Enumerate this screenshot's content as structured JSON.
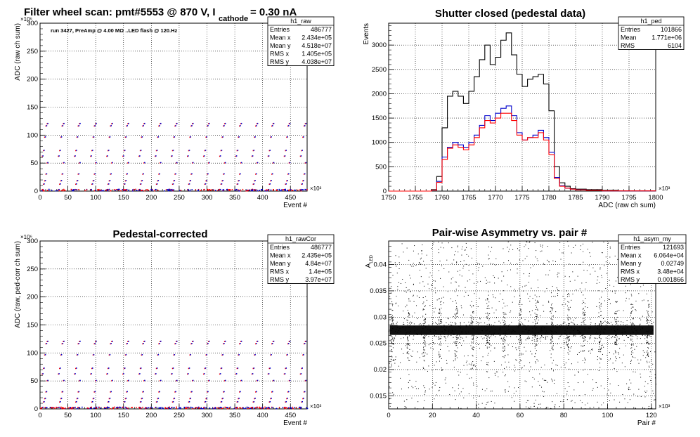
{
  "panels": [
    {
      "title": "Filter wheel scan: pmt#5553 @   870 V, I",
      "title_sub": "cathode",
      "title_tail": " = 0.30 nA",
      "note": "run 3427, PreAmp @ 4.00 MΩ ..LED flash @  120.Hz",
      "stats": {
        "name": "h1_raw",
        "rows": [
          [
            "Entries",
            "486777"
          ],
          [
            "Mean x",
            "2.434e+05"
          ],
          [
            "Mean y",
            "4.518e+07"
          ],
          [
            "RMS x",
            "1.405e+05"
          ],
          [
            "RMS y",
            "4.038e+07"
          ]
        ]
      }
    },
    {
      "title": "Shutter closed (pedestal data)",
      "stats": {
        "name": "h1_ped",
        "rows": [
          [
            "Entries",
            "101866"
          ],
          [
            "Mean",
            "1.771e+06"
          ],
          [
            "RMS",
            "6104"
          ]
        ]
      }
    },
    {
      "title": "Pedestal-corrected",
      "stats": {
        "name": "h1_rawCor",
        "rows": [
          [
            "Entries",
            "486777"
          ],
          [
            "Mean x",
            "2.435e+05"
          ],
          [
            "Mean y",
            "4.84e+07"
          ],
          [
            "RMS x",
            "1.4e+05"
          ],
          [
            "RMS y",
            "3.97e+07"
          ]
        ]
      }
    },
    {
      "title": "Pair-wise Asymmetry vs. pair #",
      "stats": {
        "name": "h1_asym_my",
        "rows": [
          [
            "Entries",
            "121693"
          ],
          [
            "Mean x",
            "6.064e+04"
          ],
          [
            "Mean y",
            "0.02749"
          ],
          [
            "RMS x",
            "3.48e+04"
          ],
          [
            "RMS y",
            "0.001866"
          ]
        ]
      }
    }
  ],
  "chart_data": [
    {
      "type": "scatter",
      "title": "Filter wheel scan: pmt#5553 @   870 V, I cathode = 0.30 nA",
      "xlabel": "Event #",
      "ylabel": "ADC (raw ch sum)",
      "x_multiplier": "×10³",
      "y_multiplier": "×10⁶",
      "xlim": [
        0,
        480
      ],
      "ylim": [
        0,
        300
      ],
      "x_ticks": [
        0,
        50,
        100,
        150,
        200,
        250,
        300,
        350,
        400,
        450
      ],
      "y_ticks": [
        0,
        50,
        100,
        150,
        200,
        250,
        300
      ],
      "cycle_period": 29,
      "cycle_offset": 3,
      "levels": [
        2,
        12,
        18,
        30,
        50,
        62,
        72,
        96,
        116,
        120
      ],
      "colors": {
        "series_a": "#ff0000",
        "series_b": "#0000cc"
      },
      "grid": true
    },
    {
      "type": "line",
      "title": "Shutter closed (pedestal data)",
      "xlabel": "ADC (raw ch sum)",
      "ylabel": "Events",
      "x_multiplier": "×10³",
      "xlim": [
        1750,
        1800
      ],
      "ylim": [
        0,
        3450
      ],
      "x_ticks": [
        1750,
        1755,
        1760,
        1765,
        1770,
        1775,
        1780,
        1785,
        1790,
        1795,
        1800
      ],
      "y_ticks": [
        0,
        500,
        1000,
        1500,
        2000,
        2500,
        3000
      ],
      "series": [
        {
          "color": "#000000",
          "x": [
            1750,
            1757,
            1758,
            1759,
            1760,
            1761,
            1762,
            1763,
            1764,
            1765,
            1766,
            1767,
            1768,
            1769,
            1770,
            1771,
            1772,
            1773,
            1774,
            1775,
            1776,
            1777,
            1778,
            1779,
            1780,
            1781,
            1782,
            1783,
            1784,
            1785,
            1787,
            1790,
            1793,
            1800
          ],
          "y": [
            0,
            0,
            30,
            300,
            1300,
            1950,
            2050,
            1950,
            1800,
            2050,
            2350,
            2700,
            3000,
            2600,
            2750,
            3100,
            3250,
            2800,
            2400,
            2150,
            2300,
            2350,
            2400,
            2200,
            1650,
            500,
            170,
            100,
            50,
            40,
            30,
            15,
            5,
            0
          ]
        },
        {
          "color": "#0000cc",
          "x": [
            1750,
            1757,
            1758,
            1759,
            1760,
            1761,
            1762,
            1763,
            1764,
            1765,
            1766,
            1767,
            1768,
            1769,
            1770,
            1771,
            1772,
            1773,
            1774,
            1775,
            1776,
            1777,
            1778,
            1779,
            1780,
            1781,
            1782,
            1783,
            1784,
            1785,
            1787,
            1790,
            1800
          ],
          "y": [
            0,
            0,
            20,
            200,
            700,
            900,
            1000,
            950,
            900,
            1000,
            1150,
            1350,
            1550,
            1450,
            1600,
            1700,
            1750,
            1550,
            1200,
            1050,
            1100,
            1150,
            1250,
            1100,
            800,
            280,
            110,
            60,
            40,
            25,
            15,
            5,
            0
          ]
        },
        {
          "color": "#ff0000",
          "x": [
            1750,
            1757,
            1758,
            1759,
            1760,
            1761,
            1762,
            1763,
            1764,
            1765,
            1766,
            1767,
            1768,
            1769,
            1770,
            1771,
            1772,
            1773,
            1774,
            1775,
            1776,
            1777,
            1778,
            1779,
            1780,
            1781,
            1782,
            1783,
            1784,
            1785,
            1787,
            1790,
            1800
          ],
          "y": [
            0,
            0,
            20,
            180,
            650,
            880,
            950,
            900,
            850,
            950,
            1100,
            1300,
            1450,
            1400,
            1500,
            1600,
            1600,
            1450,
            1150,
            1050,
            1100,
            1100,
            1200,
            1050,
            750,
            260,
            100,
            60,
            40,
            25,
            15,
            5,
            0
          ]
        }
      ],
      "grid": true
    },
    {
      "type": "scatter",
      "title": "Pedestal-corrected",
      "xlabel": "Event #",
      "ylabel": "ADC (raw, ped-corr ch sum)",
      "x_multiplier": "×10³",
      "y_multiplier": "×10⁶",
      "xlim": [
        0,
        480
      ],
      "ylim": [
        0,
        300
      ],
      "x_ticks": [
        0,
        50,
        100,
        150,
        200,
        250,
        300,
        350,
        400,
        450
      ],
      "y_ticks": [
        0,
        50,
        100,
        150,
        200,
        250,
        300
      ],
      "cycle_period": 29,
      "cycle_offset": 3,
      "levels": [
        2,
        12,
        18,
        30,
        50,
        62,
        72,
        96,
        116,
        120
      ],
      "colors": {
        "series_a": "#ff0000",
        "series_b": "#0000cc"
      },
      "grid": true
    },
    {
      "type": "scatter",
      "title": "Pair-wise Asymmetry vs. pair #",
      "xlabel": "Pair #",
      "ylabel": "A LED",
      "x_multiplier": "×10³",
      "xlim": [
        0,
        122
      ],
      "ylim": [
        0.0125,
        0.0445
      ],
      "x_ticks": [
        0,
        20,
        40,
        60,
        80,
        100,
        120
      ],
      "y_ticks": [
        0.015,
        0.02,
        0.025,
        0.03,
        0.035,
        0.04
      ],
      "band_center": 0.0275,
      "band_halfwidth": 0.0009,
      "spike_period": 7.3,
      "spike_offset": 1.5,
      "grid": true
    }
  ]
}
